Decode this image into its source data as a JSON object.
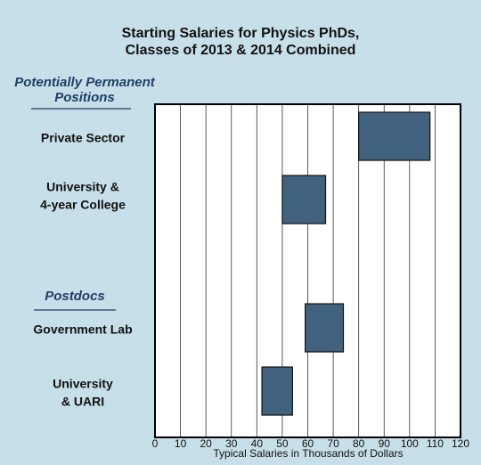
{
  "chart_data": {
    "type": "range-bar",
    "title": [
      "Starting Salaries for Physics PhDs,",
      "Classes of 2013 & 2014 Combined"
    ],
    "groups": [
      {
        "name": [
          "Potentially Permanent",
          "Positions"
        ]
      },
      {
        "name": [
          "Postdocs"
        ]
      }
    ],
    "categories": [
      [
        "Private Sector"
      ],
      [
        "University &",
        "4-year College"
      ],
      [
        "Government Lab"
      ],
      [
        "University",
        "& UARI"
      ]
    ],
    "low": [
      80,
      50,
      59,
      42
    ],
    "high": [
      108,
      67,
      74,
      54
    ],
    "color": "#41627f",
    "xlim": [
      0,
      120
    ],
    "xticks": [
      0,
      10,
      20,
      30,
      40,
      50,
      60,
      70,
      80,
      90,
      100,
      110,
      120
    ],
    "xlabel": "Typical Salaries in Thousands of Dollars",
    "grid": true
  }
}
